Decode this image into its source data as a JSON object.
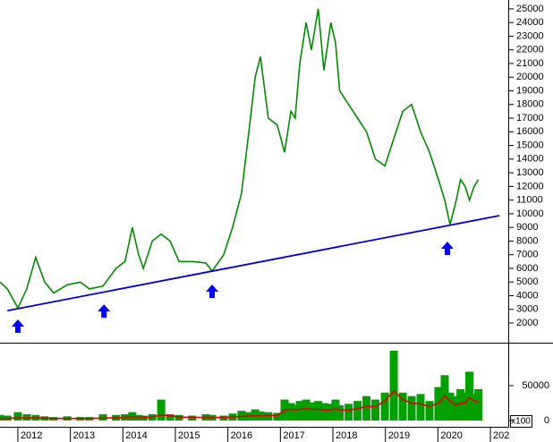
{
  "chart_data": [
    {
      "type": "line",
      "x": [
        2011.66,
        2011.8,
        2012.0,
        2012.17,
        2012.34,
        2012.51,
        2012.68,
        2012.94,
        2013.19,
        2013.36,
        2013.62,
        2013.87,
        2014.04,
        2014.18,
        2014.3,
        2014.39,
        2014.56,
        2014.73,
        2014.9,
        2015.07,
        2015.32,
        2015.58,
        2015.7,
        2015.92,
        2016.09,
        2016.26,
        2016.4,
        2016.52,
        2016.62,
        2016.77,
        2016.94,
        2017.08,
        2017.2,
        2017.28,
        2017.37,
        2017.49,
        2017.59,
        2017.72,
        2017.83,
        2017.96,
        2018.05,
        2018.13,
        2018.3,
        2018.47,
        2018.64,
        2018.81,
        2018.99,
        2019.16,
        2019.33,
        2019.5,
        2019.67,
        2019.84,
        2020.01,
        2020.13,
        2020.23,
        2020.35,
        2020.43,
        2020.52,
        2020.6,
        2020.69,
        2020.77
      ],
      "values": [
        5000,
        4500,
        3100,
        4500,
        6800,
        5000,
        4200,
        4800,
        5000,
        4500,
        4700,
        6000,
        6500,
        9000,
        7000,
        6000,
        8000,
        8500,
        8000,
        6500,
        6500,
        6400,
        5800,
        7000,
        9000,
        11500,
        16000,
        20000,
        21500,
        17000,
        16500,
        14500,
        17500,
        17000,
        21000,
        24000,
        22000,
        25000,
        20500,
        24000,
        22500,
        19000,
        18000,
        17000,
        16000,
        14000,
        13500,
        15500,
        17500,
        18000,
        16000,
        14500,
        12500,
        11000,
        9200,
        11000,
        12500,
        12000,
        11000,
        12000,
        12500
      ],
      "color": "#008c00",
      "xlim": [
        2011.66,
        2021.34
      ],
      "xticks": [
        2012,
        2013,
        2014,
        2015,
        2016,
        2017,
        2018,
        2019,
        2020,
        {
          "value": 2021,
          "label": "202"
        }
      ],
      "ylim": [
        560,
        25650
      ],
      "yticks": [
        2000,
        3000,
        4000,
        5000,
        6000,
        7000,
        8000,
        9000,
        10000,
        11000,
        12000,
        13000,
        14000,
        15000,
        16000,
        17000,
        18000,
        19000,
        20000,
        21000,
        22000,
        23000,
        24000,
        25000
      ],
      "trendline": {
        "x": [
          2011.8,
          2021.17
        ],
        "values": [
          2900,
          9860
        ],
        "color": "#0000cc"
      },
      "markers": {
        "x": [
          2012.0,
          2013.64,
          2015.7,
          2020.18
        ],
        "values": [
          2260,
          3370,
          4820,
          7960
        ],
        "color": "#0000ff"
      }
    },
    {
      "type": "bar",
      "x": [
        2011.66,
        2011.8,
        2012.0,
        2012.17,
        2012.34,
        2012.51,
        2012.68,
        2012.94,
        2013.19,
        2013.36,
        2013.62,
        2013.87,
        2014.04,
        2014.18,
        2014.3,
        2014.39,
        2014.56,
        2014.73,
        2014.9,
        2015.07,
        2015.32,
        2015.58,
        2015.7,
        2015.92,
        2016.09,
        2016.26,
        2016.4,
        2016.52,
        2016.62,
        2016.77,
        2016.94,
        2017.08,
        2017.2,
        2017.28,
        2017.37,
        2017.49,
        2017.59,
        2017.72,
        2017.83,
        2017.96,
        2018.05,
        2018.13,
        2018.3,
        2018.47,
        2018.64,
        2018.81,
        2018.99,
        2019.16,
        2019.33,
        2019.5,
        2019.67,
        2019.84,
        2020.01,
        2020.13,
        2020.23,
        2020.35,
        2020.43,
        2020.52,
        2020.6,
        2020.69,
        2020.77
      ],
      "values": [
        8000,
        7000,
        12000,
        9000,
        8000,
        6000,
        5000,
        6000,
        5000,
        5000,
        9000,
        8000,
        9000,
        12000,
        8000,
        7000,
        9000,
        30000,
        9000,
        8000,
        7000,
        9000,
        8000,
        7000,
        10000,
        14000,
        12000,
        16000,
        13000,
        12000,
        11000,
        30000,
        25000,
        22000,
        28000,
        30000,
        26000,
        28000,
        25000,
        24000,
        30000,
        22000,
        24000,
        28000,
        35000,
        30000,
        40000,
        100000,
        40000,
        35000,
        38000,
        28000,
        48000,
        65000,
        40000,
        35000,
        45000,
        40000,
        70000,
        38000,
        45000
      ],
      "color": "#00a000",
      "ma": {
        "values": [
          3000,
          3000,
          4000,
          4000,
          4000,
          3500,
          3000,
          3000,
          3000,
          3000,
          3500,
          4000,
          4500,
          5000,
          5000,
          4500,
          5000,
          8000,
          7000,
          5000,
          4500,
          4500,
          4500,
          4500,
          5000,
          6000,
          6500,
          7000,
          7000,
          7000,
          7000,
          15000,
          16000,
          15000,
          16000,
          17000,
          16000,
          16000,
          15000,
          15000,
          17000,
          15000,
          15000,
          17000,
          20000,
          20000,
          28000,
          42000,
          30000,
          25000,
          24000,
          20000,
          25000,
          35000,
          28000,
          22000,
          25000,
          25000,
          33000,
          28000,
          27000
        ],
        "color": "#dd0000"
      },
      "xlim": [
        2011.66,
        2021.34
      ],
      "ylim": [
        0,
        109000
      ],
      "yticks": [
        0,
        50000
      ],
      "unit_label": "x100"
    }
  ]
}
